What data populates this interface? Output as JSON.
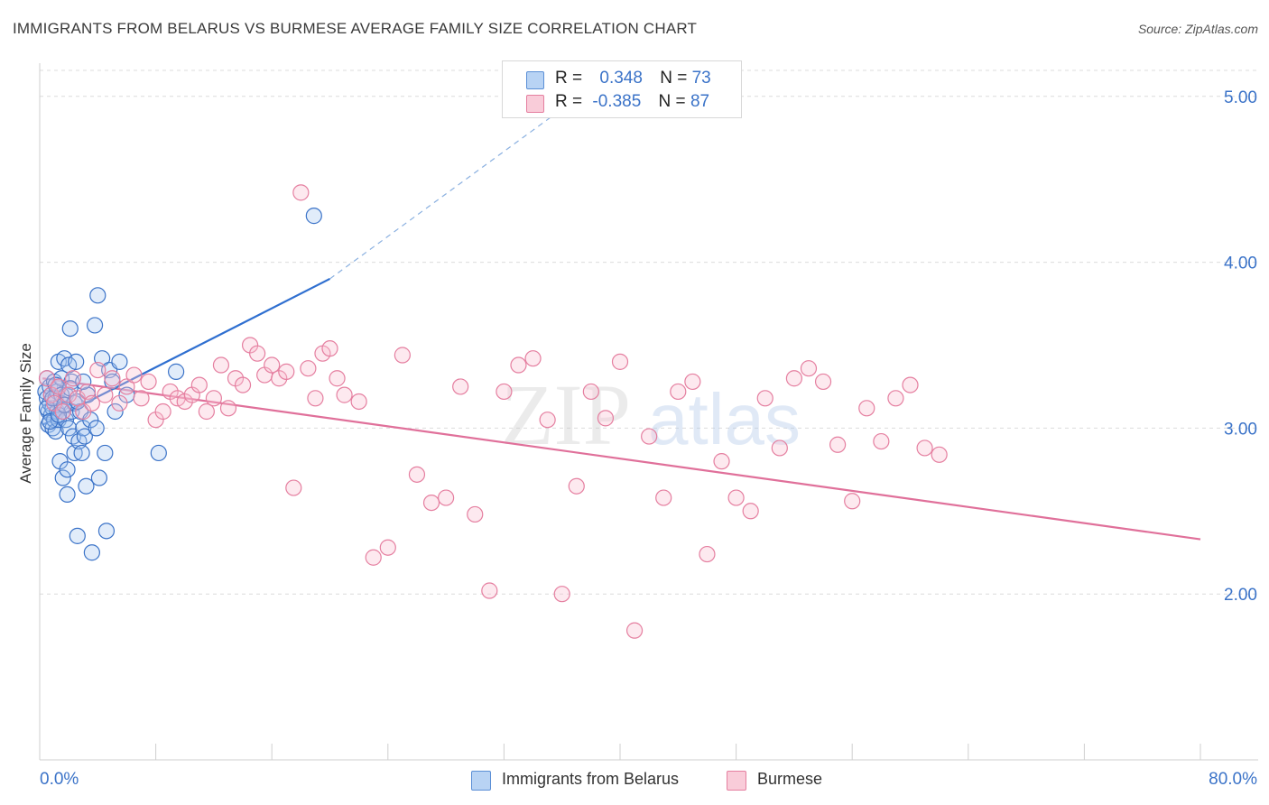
{
  "title": "IMMIGRANTS FROM BELARUS VS BURMESE AVERAGE FAMILY SIZE CORRELATION CHART",
  "source": "Source: ZipAtlas.com",
  "watermark": {
    "zip": "ZIP",
    "atlas": "atlas"
  },
  "legend": {
    "r_label": "R =",
    "n_label": "N =",
    "rows": [
      {
        "r": "0.348",
        "n": "73",
        "color": "#a8c8f0",
        "edge": "#5b8fd6"
      },
      {
        "r": "-0.385",
        "n": "87",
        "color": "#f8c0d0",
        "edge": "#e57fa0"
      }
    ]
  },
  "chart_data": {
    "type": "scatter",
    "title": "IMMIGRANTS FROM BELARUS VS BURMESE AVERAGE FAMILY SIZE CORRELATION CHART",
    "xlabel": "",
    "ylabel": "Average Family Size",
    "xlim": [
      0,
      80
    ],
    "ylim": [
      1.0,
      5.2
    ],
    "x_tick_labels": [
      "0.0%",
      "80.0%"
    ],
    "y_tick_labels": [
      "2.00",
      "3.00",
      "4.00",
      "5.00"
    ],
    "y_ticks": [
      2.0,
      3.0,
      4.0,
      5.0
    ],
    "grid": true,
    "legend_position": "top-center",
    "colors": {
      "belarus": "#3b73c8",
      "burmese": "#e0709a"
    },
    "series": [
      {
        "name": "Immigrants from Belarus",
        "r": 0.348,
        "n": 73,
        "trend": {
          "x0": 0.2,
          "y0": 3.02,
          "x1": 20.0,
          "y1": 3.9,
          "dash_to_x": 40.0,
          "dash_to_y": 5.18
        },
        "points": [
          [
            0.4,
            3.22
          ],
          [
            0.5,
            3.3
          ],
          [
            0.5,
            3.18
          ],
          [
            0.6,
            3.1
          ],
          [
            0.6,
            3.02
          ],
          [
            0.7,
            3.15
          ],
          [
            0.7,
            3.25
          ],
          [
            0.8,
            3.08
          ],
          [
            0.8,
            3.2
          ],
          [
            0.9,
            3.0
          ],
          [
            0.9,
            3.12
          ],
          [
            1.0,
            3.28
          ],
          [
            1.0,
            3.05
          ],
          [
            1.1,
            3.18
          ],
          [
            1.1,
            2.98
          ],
          [
            1.2,
            3.1
          ],
          [
            1.2,
            3.22
          ],
          [
            1.3,
            3.4
          ],
          [
            1.3,
            3.05
          ],
          [
            1.4,
            2.8
          ],
          [
            1.5,
            3.15
          ],
          [
            1.5,
            3.3
          ],
          [
            1.6,
            2.7
          ],
          [
            1.6,
            3.1
          ],
          [
            1.7,
            3.42
          ],
          [
            1.8,
            3.05
          ],
          [
            1.8,
            3.2
          ],
          [
            1.9,
            2.6
          ],
          [
            1.9,
            2.75
          ],
          [
            2.0,
            3.38
          ],
          [
            2.0,
            3.0
          ],
          [
            2.1,
            3.6
          ],
          [
            2.2,
            3.1
          ],
          [
            2.2,
            3.28
          ],
          [
            2.3,
            2.95
          ],
          [
            2.4,
            2.85
          ],
          [
            2.4,
            3.15
          ],
          [
            2.5,
            3.4
          ],
          [
            2.6,
            2.35
          ],
          [
            2.7,
            2.92
          ],
          [
            2.8,
            3.1
          ],
          [
            2.9,
            2.85
          ],
          [
            3.0,
            3.0
          ],
          [
            3.1,
            2.95
          ],
          [
            3.2,
            2.65
          ],
          [
            3.3,
            3.2
          ],
          [
            3.5,
            3.05
          ],
          [
            3.6,
            2.25
          ],
          [
            3.8,
            3.62
          ],
          [
            3.9,
            3.0
          ],
          [
            4.0,
            3.8
          ],
          [
            4.1,
            2.7
          ],
          [
            4.3,
            3.42
          ],
          [
            4.5,
            2.85
          ],
          [
            4.6,
            2.38
          ],
          [
            4.8,
            3.35
          ],
          [
            5.0,
            3.28
          ],
          [
            5.2,
            3.1
          ],
          [
            5.5,
            3.4
          ],
          [
            6.0,
            3.2
          ],
          [
            0.5,
            3.12
          ],
          [
            0.7,
            3.04
          ],
          [
            0.9,
            3.18
          ],
          [
            1.1,
            3.26
          ],
          [
            1.3,
            3.08
          ],
          [
            1.5,
            3.2
          ],
          [
            1.7,
            3.14
          ],
          [
            2.1,
            3.24
          ],
          [
            2.6,
            3.16
          ],
          [
            3.0,
            3.28
          ],
          [
            8.2,
            2.85
          ],
          [
            9.4,
            3.34
          ],
          [
            18.9,
            4.28
          ]
        ]
      },
      {
        "name": "Burmese",
        "r": -0.385,
        "n": 87,
        "trend": {
          "x0": 0.2,
          "y0": 3.3,
          "x1": 80.0,
          "y1": 2.33
        },
        "points": [
          [
            0.5,
            3.3
          ],
          [
            0.8,
            3.2
          ],
          [
            1.0,
            3.15
          ],
          [
            1.3,
            3.25
          ],
          [
            1.6,
            3.1
          ],
          [
            2.0,
            3.2
          ],
          [
            2.3,
            3.3
          ],
          [
            2.6,
            3.18
          ],
          [
            3.0,
            3.1
          ],
          [
            3.3,
            3.22
          ],
          [
            3.6,
            3.15
          ],
          [
            4.0,
            3.35
          ],
          [
            4.5,
            3.2
          ],
          [
            5.0,
            3.3
          ],
          [
            5.5,
            3.15
          ],
          [
            6.0,
            3.25
          ],
          [
            6.5,
            3.32
          ],
          [
            7.0,
            3.18
          ],
          [
            7.5,
            3.28
          ],
          [
            8.0,
            3.05
          ],
          [
            8.5,
            3.1
          ],
          [
            9.0,
            3.22
          ],
          [
            9.5,
            3.18
          ],
          [
            10.0,
            3.16
          ],
          [
            10.5,
            3.2
          ],
          [
            11.0,
            3.26
          ],
          [
            11.5,
            3.1
          ],
          [
            12.0,
            3.18
          ],
          [
            12.5,
            3.38
          ],
          [
            13.0,
            3.12
          ],
          [
            13.5,
            3.3
          ],
          [
            14.0,
            3.26
          ],
          [
            14.5,
            3.5
          ],
          [
            15.0,
            3.45
          ],
          [
            15.5,
            3.32
          ],
          [
            16.0,
            3.38
          ],
          [
            16.5,
            3.3
          ],
          [
            17.0,
            3.34
          ],
          [
            17.5,
            2.64
          ],
          [
            18.0,
            4.42
          ],
          [
            18.5,
            3.36
          ],
          [
            19.0,
            3.18
          ],
          [
            19.5,
            3.45
          ],
          [
            20.0,
            3.48
          ],
          [
            20.5,
            3.3
          ],
          [
            21.0,
            3.2
          ],
          [
            22.0,
            3.16
          ],
          [
            23.0,
            2.22
          ],
          [
            24.0,
            2.28
          ],
          [
            25.0,
            3.44
          ],
          [
            26.0,
            2.72
          ],
          [
            27.0,
            2.55
          ],
          [
            28.0,
            2.58
          ],
          [
            29.0,
            3.25
          ],
          [
            30.0,
            2.48
          ],
          [
            31.0,
            2.02
          ],
          [
            32.0,
            3.22
          ],
          [
            33.0,
            3.38
          ],
          [
            34.0,
            3.42
          ],
          [
            35.0,
            3.05
          ],
          [
            36.0,
            2.0
          ],
          [
            37.0,
            2.65
          ],
          [
            38.0,
            3.22
          ],
          [
            39.0,
            3.06
          ],
          [
            40.0,
            3.4
          ],
          [
            41.0,
            1.78
          ],
          [
            42.0,
            2.95
          ],
          [
            43.0,
            2.58
          ],
          [
            44.0,
            3.22
          ],
          [
            45.0,
            3.28
          ],
          [
            46.0,
            2.24
          ],
          [
            47.0,
            2.8
          ],
          [
            48.0,
            2.58
          ],
          [
            49.0,
            2.5
          ],
          [
            50.0,
            3.18
          ],
          [
            51.0,
            2.88
          ],
          [
            52.0,
            3.3
          ],
          [
            53.0,
            3.36
          ],
          [
            54.0,
            3.28
          ],
          [
            55.0,
            2.9
          ],
          [
            56.0,
            2.56
          ],
          [
            57.0,
            3.12
          ],
          [
            58.0,
            2.92
          ],
          [
            59.0,
            3.18
          ],
          [
            60.0,
            3.26
          ],
          [
            61.0,
            2.88
          ],
          [
            62.0,
            2.84
          ]
        ]
      }
    ]
  }
}
